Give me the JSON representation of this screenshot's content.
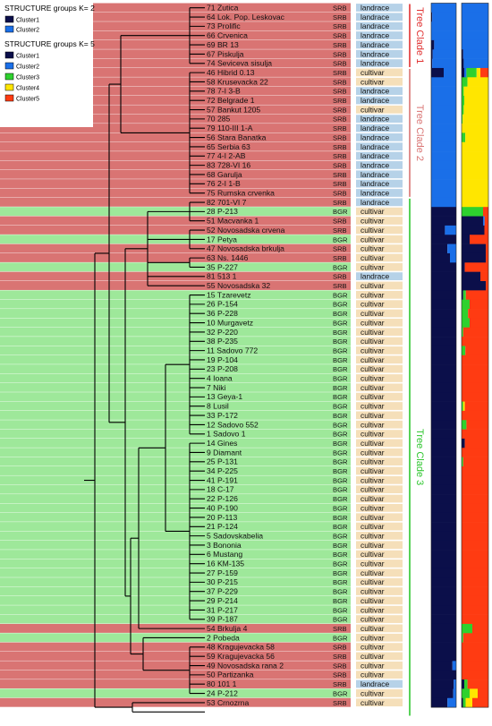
{
  "legend": {
    "k2": {
      "title": "STRUCTURE groups K= 2",
      "items": [
        {
          "label": "Cluster1",
          "color": "#0b0f4a"
        },
        {
          "label": "Cluster2",
          "color": "#1a6fe8"
        }
      ]
    },
    "k5": {
      "title": "STRUCTURE groups K= 5",
      "items": [
        {
          "label": "Cluster1",
          "color": "#0b0f4a"
        },
        {
          "label": "Cluster2",
          "color": "#1a6fe8"
        },
        {
          "label": "Cluster3",
          "color": "#2ed12e"
        },
        {
          "label": "Cluster4",
          "color": "#ffe600"
        },
        {
          "label": "Cluster5",
          "color": "#ff3b12"
        }
      ]
    }
  },
  "colors": {
    "srb_row": "#d97473",
    "bgr_row": "#9ee89a",
    "landrace_box": "#b6d2e8",
    "cultivar_box": "#f5dfb9",
    "clade1": "#e03030",
    "clade2": "#d97473",
    "clade3": "#2ec62e"
  },
  "clades": [
    {
      "label": "Tree Clade 1",
      "from_row": 0,
      "to_row": 6
    },
    {
      "label": "Tree Clade 2",
      "from_row": 7,
      "to_row": 20
    },
    {
      "label": "Tree Clade 3",
      "from_row": 21,
      "to_row": 76
    }
  ],
  "accessions": [
    {
      "name": "71 Zutica",
      "country": "SRB",
      "type": "landrace",
      "k2": [
        0,
        1
      ],
      "k5": [
        0,
        1,
        0,
        0,
        0
      ]
    },
    {
      "name": "64 Lok. Pop. Leskovac",
      "country": "SRB",
      "type": "landrace",
      "k2": [
        0.04,
        0.96
      ],
      "k5": [
        0,
        1,
        0,
        0,
        0
      ]
    },
    {
      "name": "73 Prolific",
      "country": "SRB",
      "type": "landrace",
      "k2": [
        0,
        1
      ],
      "k5": [
        0,
        1,
        0,
        0,
        0
      ]
    },
    {
      "name": "66 Crvenica",
      "country": "SRB",
      "type": "landrace",
      "k2": [
        0,
        1
      ],
      "k5": [
        0,
        1,
        0,
        0,
        0
      ]
    },
    {
      "name": "69 BR 13",
      "country": "SRB",
      "type": "landrace",
      "k2": [
        0.12,
        0.88
      ],
      "k5": [
        0,
        1,
        0,
        0,
        0
      ]
    },
    {
      "name": "67 Piskulja",
      "country": "SRB",
      "type": "landrace",
      "k2": [
        0.06,
        0.94
      ],
      "k5": [
        0.06,
        0.94,
        0,
        0,
        0
      ]
    },
    {
      "name": "74 Seviceva sisulja",
      "country": "SRB",
      "type": "landrace",
      "k2": [
        0.04,
        0.96
      ],
      "k5": [
        0.08,
        0.92,
        0,
        0,
        0
      ]
    },
    {
      "name": "46 Hibrid 0.13",
      "country": "SRB",
      "type": "cultivar",
      "k2": [
        0.5,
        0.5
      ],
      "k5": [
        0.1,
        0.08,
        0.38,
        0.14,
        0.3
      ]
    },
    {
      "name": "58 Krusevacka 22",
      "country": "SRB",
      "type": "cultivar",
      "k2": [
        0,
        1
      ],
      "k5": [
        0,
        0,
        0.22,
        0.78,
        0
      ]
    },
    {
      "name": "78 7-I 3-B",
      "country": "SRB",
      "type": "landrace",
      "k2": [
        0,
        1
      ],
      "k5": [
        0,
        0,
        0.08,
        0.92,
        0
      ]
    },
    {
      "name": "72 Belgrade 1",
      "country": "SRB",
      "type": "landrace",
      "k2": [
        0,
        1
      ],
      "k5": [
        0,
        0,
        0.1,
        0.9,
        0
      ]
    },
    {
      "name": "57 Bankut 1205",
      "country": "SRB",
      "type": "cultivar",
      "k2": [
        0,
        1
      ],
      "k5": [
        0,
        0,
        0.08,
        0.92,
        0
      ]
    },
    {
      "name": "70 285",
      "country": "SRB",
      "type": "landrace",
      "k2": [
        0,
        1
      ],
      "k5": [
        0,
        0,
        0.04,
        0.96,
        0
      ]
    },
    {
      "name": "79 110-III 1-A",
      "country": "SRB",
      "type": "landrace",
      "k2": [
        0,
        1
      ],
      "k5": [
        0,
        0,
        0,
        1,
        0
      ]
    },
    {
      "name": "56 Stara Banatka",
      "country": "SRB",
      "type": "landrace",
      "k2": [
        0,
        1
      ],
      "k5": [
        0,
        0,
        0.14,
        0.86,
        0
      ]
    },
    {
      "name": "65 Serbia 63",
      "country": "SRB",
      "type": "landrace",
      "k2": [
        0,
        1
      ],
      "k5": [
        0,
        0,
        0,
        1,
        0
      ]
    },
    {
      "name": "77 4-I 2-AB",
      "country": "SRB",
      "type": "landrace",
      "k2": [
        0,
        1
      ],
      "k5": [
        0,
        0,
        0,
        1,
        0
      ]
    },
    {
      "name": "83 728-VI 16",
      "country": "SRB",
      "type": "landrace",
      "k2": [
        0,
        1
      ],
      "k5": [
        0,
        0,
        0,
        1,
        0
      ]
    },
    {
      "name": "68 Garulja",
      "country": "SRB",
      "type": "landrace",
      "k2": [
        0,
        1
      ],
      "k5": [
        0,
        0,
        0,
        1,
        0
      ]
    },
    {
      "name": "76 2-I 1-B",
      "country": "SRB",
      "type": "landrace",
      "k2": [
        0,
        1
      ],
      "k5": [
        0,
        0,
        0,
        1,
        0
      ]
    },
    {
      "name": "75 Rumska crvenka",
      "country": "SRB",
      "type": "landrace",
      "k2": [
        0,
        1
      ],
      "k5": [
        0,
        0,
        0,
        1,
        0
      ]
    },
    {
      "name": "82 701-VI 7",
      "country": "SRB",
      "type": "landrace",
      "k2": [
        0,
        1
      ],
      "k5": [
        0,
        0,
        0,
        1,
        0
      ]
    },
    {
      "name": "28 P-213",
      "country": "BGR",
      "type": "cultivar",
      "k2": [
        1,
        0
      ],
      "k5": [
        0,
        0,
        0.8,
        0,
        0.2
      ]
    },
    {
      "name": "51 Macvanka 1",
      "country": "SRB",
      "type": "cultivar",
      "k2": [
        1,
        0
      ],
      "k5": [
        0.8,
        0.06,
        0,
        0,
        0.14
      ]
    },
    {
      "name": "52 Novosadska crvena",
      "country": "SRB",
      "type": "cultivar",
      "k2": [
        0.55,
        0.45
      ],
      "k5": [
        0.85,
        0,
        0,
        0,
        0.15
      ]
    },
    {
      "name": "17 Petya",
      "country": "BGR",
      "type": "cultivar",
      "k2": [
        1,
        0
      ],
      "k5": [
        0.3,
        0,
        0,
        0,
        0.7
      ]
    },
    {
      "name": "47 Novosadska brkulja",
      "country": "SRB",
      "type": "cultivar",
      "k2": [
        0.65,
        0.35
      ],
      "k5": [
        0.9,
        0,
        0,
        0,
        0.1
      ]
    },
    {
      "name": "63 Ns. 1446",
      "country": "SRB",
      "type": "cultivar",
      "k2": [
        0.75,
        0.25
      ],
      "k5": [
        0.9,
        0,
        0,
        0,
        0.1
      ]
    },
    {
      "name": "35 P-227",
      "country": "BGR",
      "type": "cultivar",
      "k2": [
        1,
        0
      ],
      "k5": [
        0.12,
        0,
        0,
        0,
        0.88
      ]
    },
    {
      "name": "81 513 1",
      "country": "SRB",
      "type": "landrace",
      "k2": [
        1,
        0
      ],
      "k5": [
        0.7,
        0,
        0,
        0,
        0.3
      ]
    },
    {
      "name": "55 Novosadska 32",
      "country": "SRB",
      "type": "cultivar",
      "k2": [
        1,
        0
      ],
      "k5": [
        0.9,
        0,
        0,
        0,
        0.1
      ]
    },
    {
      "name": "15 Tzarevetz",
      "country": "BGR",
      "type": "cultivar",
      "k2": [
        1,
        0
      ],
      "k5": [
        0.06,
        0,
        0.1,
        0,
        0.84
      ]
    },
    {
      "name": "26 P-154",
      "country": "BGR",
      "type": "cultivar",
      "k2": [
        1,
        0
      ],
      "k5": [
        0,
        0,
        0.3,
        0,
        0.7
      ]
    },
    {
      "name": "36 P-228",
      "country": "BGR",
      "type": "cultivar",
      "k2": [
        1,
        0
      ],
      "k5": [
        0,
        0,
        0.24,
        0,
        0.76
      ]
    },
    {
      "name": "10 Murgavetz",
      "country": "BGR",
      "type": "cultivar",
      "k2": [
        1,
        0
      ],
      "k5": [
        0,
        0,
        0.3,
        0,
        0.7
      ]
    },
    {
      "name": "32 P-220",
      "country": "BGR",
      "type": "cultivar",
      "k2": [
        1,
        0
      ],
      "k5": [
        0,
        0,
        0.06,
        0,
        0.94
      ]
    },
    {
      "name": "38 P-235",
      "country": "BGR",
      "type": "cultivar",
      "k2": [
        1,
        0
      ],
      "k5": [
        0,
        0,
        0,
        0,
        1
      ]
    },
    {
      "name": "11 Sadovo 772",
      "country": "BGR",
      "type": "cultivar",
      "k2": [
        1,
        0
      ],
      "k5": [
        0,
        0,
        0.14,
        0,
        0.86
      ]
    },
    {
      "name": "19 P-104",
      "country": "BGR",
      "type": "cultivar",
      "k2": [
        1,
        0
      ],
      "k5": [
        0,
        0,
        0,
        0,
        1
      ]
    },
    {
      "name": "23 P-208",
      "country": "BGR",
      "type": "cultivar",
      "k2": [
        1,
        0
      ],
      "k5": [
        0,
        0,
        0,
        0,
        1
      ]
    },
    {
      "name": "4 Ioana",
      "country": "BGR",
      "type": "cultivar",
      "k2": [
        1,
        0
      ],
      "k5": [
        0,
        0,
        0,
        0,
        1
      ]
    },
    {
      "name": "7 Niki",
      "country": "BGR",
      "type": "cultivar",
      "k2": [
        1,
        0
      ],
      "k5": [
        0,
        0,
        0,
        0,
        1
      ]
    },
    {
      "name": "13 Geya-1",
      "country": "BGR",
      "type": "cultivar",
      "k2": [
        1,
        0
      ],
      "k5": [
        0,
        0,
        0,
        0,
        1
      ]
    },
    {
      "name": "8 Lusil",
      "country": "BGR",
      "type": "cultivar",
      "k2": [
        1,
        0
      ],
      "k5": [
        0,
        0,
        0.06,
        0.06,
        0.88
      ]
    },
    {
      "name": "33 P-172",
      "country": "BGR",
      "type": "cultivar",
      "k2": [
        1,
        0
      ],
      "k5": [
        0,
        0,
        0,
        0,
        1
      ]
    },
    {
      "name": "12 Sadovo 552",
      "country": "BGR",
      "type": "cultivar",
      "k2": [
        1,
        0
      ],
      "k5": [
        0,
        0,
        0.18,
        0,
        0.82
      ]
    },
    {
      "name": "1 Sadovo 1",
      "country": "BGR",
      "type": "cultivar",
      "k2": [
        1,
        0
      ],
      "k5": [
        0,
        0,
        0,
        0,
        1
      ]
    },
    {
      "name": "14 Gines",
      "country": "BGR",
      "type": "cultivar",
      "k2": [
        1,
        0
      ],
      "k5": [
        0.12,
        0,
        0,
        0,
        0.88
      ]
    },
    {
      "name": "9 Diamant",
      "country": "BGR",
      "type": "cultivar",
      "k2": [
        1,
        0
      ],
      "k5": [
        0,
        0,
        0,
        0,
        1
      ]
    },
    {
      "name": "25 P-131",
      "country": "BGR",
      "type": "cultivar",
      "k2": [
        1,
        0
      ],
      "k5": [
        0,
        0,
        0.06,
        0,
        0.94
      ]
    },
    {
      "name": "34 P-225",
      "country": "BGR",
      "type": "cultivar",
      "k2": [
        1,
        0
      ],
      "k5": [
        0,
        0,
        0,
        0,
        1
      ]
    },
    {
      "name": "41 P-191",
      "country": "BGR",
      "type": "cultivar",
      "k2": [
        1,
        0
      ],
      "k5": [
        0,
        0,
        0,
        0,
        1
      ]
    },
    {
      "name": "18 C-17",
      "country": "BGR",
      "type": "cultivar",
      "k2": [
        1,
        0
      ],
      "k5": [
        0,
        0,
        0,
        0,
        1
      ]
    },
    {
      "name": "22 P-126",
      "country": "BGR",
      "type": "cultivar",
      "k2": [
        1,
        0
      ],
      "k5": [
        0,
        0,
        0,
        0,
        1
      ]
    },
    {
      "name": "40 P-190",
      "country": "BGR",
      "type": "cultivar",
      "k2": [
        1,
        0
      ],
      "k5": [
        0,
        0,
        0,
        0,
        1
      ]
    },
    {
      "name": "20 P-113",
      "country": "BGR",
      "type": "cultivar",
      "k2": [
        1,
        0
      ],
      "k5": [
        0,
        0,
        0,
        0,
        1
      ]
    },
    {
      "name": "21 P-124",
      "country": "BGR",
      "type": "cultivar",
      "k2": [
        1,
        0
      ],
      "k5": [
        0,
        0,
        0,
        0,
        1
      ]
    },
    {
      "name": "5 Sadovskabelia",
      "country": "BGR",
      "type": "cultivar",
      "k2": [
        1,
        0
      ],
      "k5": [
        0,
        0,
        0,
        0,
        1
      ]
    },
    {
      "name": "3 Bononia",
      "country": "BGR",
      "type": "cultivar",
      "k2": [
        1,
        0
      ],
      "k5": [
        0,
        0,
        0,
        0,
        1
      ]
    },
    {
      "name": "6 Mustang",
      "country": "BGR",
      "type": "cultivar",
      "k2": [
        1,
        0
      ],
      "k5": [
        0,
        0,
        0,
        0,
        1
      ]
    },
    {
      "name": "16 KM-135",
      "country": "BGR",
      "type": "cultivar",
      "k2": [
        1,
        0
      ],
      "k5": [
        0,
        0,
        0,
        0,
        1
      ]
    },
    {
      "name": "27 P-159",
      "country": "BGR",
      "type": "cultivar",
      "k2": [
        1,
        0
      ],
      "k5": [
        0,
        0,
        0,
        0,
        1
      ]
    },
    {
      "name": "30 P-215",
      "country": "BGR",
      "type": "cultivar",
      "k2": [
        1,
        0
      ],
      "k5": [
        0,
        0,
        0,
        0,
        1
      ]
    },
    {
      "name": "37 P-229",
      "country": "BGR",
      "type": "cultivar",
      "k2": [
        1,
        0
      ],
      "k5": [
        0,
        0,
        0,
        0,
        1
      ]
    },
    {
      "name": "29 P-214",
      "country": "BGR",
      "type": "cultivar",
      "k2": [
        1,
        0
      ],
      "k5": [
        0,
        0,
        0,
        0,
        1
      ]
    },
    {
      "name": "31 P-217",
      "country": "BGR",
      "type": "cultivar",
      "k2": [
        1,
        0
      ],
      "k5": [
        0,
        0,
        0,
        0,
        1
      ]
    },
    {
      "name": "39 P-187",
      "country": "BGR",
      "type": "cultivar",
      "k2": [
        1,
        0
      ],
      "k5": [
        0,
        0,
        0,
        0,
        1
      ]
    },
    {
      "name": "54 Brkulja 4",
      "country": "SRB",
      "type": "cultivar",
      "k2": [
        1,
        0
      ],
      "k5": [
        0,
        0,
        0.4,
        0,
        0.6
      ]
    },
    {
      "name": "2 Pobeda",
      "country": "BGR",
      "type": "cultivar",
      "k2": [
        1,
        0
      ],
      "k5": [
        0,
        0,
        0.06,
        0,
        0.94
      ]
    },
    {
      "name": "48 Kragujevacka 58",
      "country": "SRB",
      "type": "cultivar",
      "k2": [
        1,
        0
      ],
      "k5": [
        0,
        0,
        0,
        0,
        1
      ]
    },
    {
      "name": "59 Kragujevacka 56",
      "country": "SRB",
      "type": "cultivar",
      "k2": [
        1,
        0
      ],
      "k5": [
        0,
        0,
        0,
        0,
        1
      ]
    },
    {
      "name": "49 Novosadska rana 2",
      "country": "SRB",
      "type": "cultivar",
      "k2": [
        0.85,
        0.15
      ],
      "k5": [
        0,
        0,
        0,
        0,
        1
      ]
    },
    {
      "name": "50 Partizanka",
      "country": "SRB",
      "type": "cultivar",
      "k2": [
        1,
        0
      ],
      "k5": [
        0,
        0,
        0,
        0,
        1
      ]
    },
    {
      "name": "80 101 1",
      "country": "SRB",
      "type": "landrace",
      "k2": [
        0.9,
        0.1
      ],
      "k5": [
        0.1,
        0,
        0.12,
        0,
        0.78
      ]
    },
    {
      "name": "24 P-212",
      "country": "BGR",
      "type": "cultivar",
      "k2": [
        0.88,
        0.12
      ],
      "k5": [
        0,
        0,
        0.3,
        0.3,
        0.4
      ]
    },
    {
      "name": "53 Crnozrna",
      "country": "SRB",
      "type": "cultivar",
      "k2": [
        0.65,
        0.35
      ],
      "k5": [
        0.05,
        0,
        0.1,
        0.25,
        0.6
      ]
    }
  ]
}
